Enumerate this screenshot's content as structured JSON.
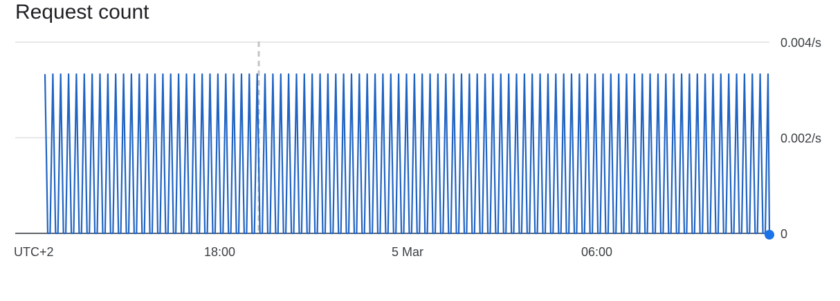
{
  "title": "Request count",
  "timezone_label": "UTC+2",
  "colors": {
    "series": "#1f63c3",
    "grid": "#e0e0e0",
    "axis": "#5f6368",
    "marker_line": "#c4c4c4",
    "end_dot": "#1a73e8"
  },
  "chart_data": {
    "type": "line",
    "title": "Request count",
    "xlabel": "",
    "ylabel": "",
    "ylim": [
      0,
      0.004
    ],
    "y_ticks": [
      {
        "value": 0.004,
        "label": "0.004/s"
      },
      {
        "value": 0.002,
        "label": "0.002/s"
      },
      {
        "value": 0,
        "label": "0"
      }
    ],
    "x_ticks": [
      "UTC+2",
      "18:00",
      "5 Mar",
      "06:00"
    ],
    "grid": true,
    "legend": "none",
    "series": [
      {
        "peak_value": 0.00333,
        "baseline_value": 0,
        "spike_count": 92,
        "last_value": 0
      }
    ]
  }
}
